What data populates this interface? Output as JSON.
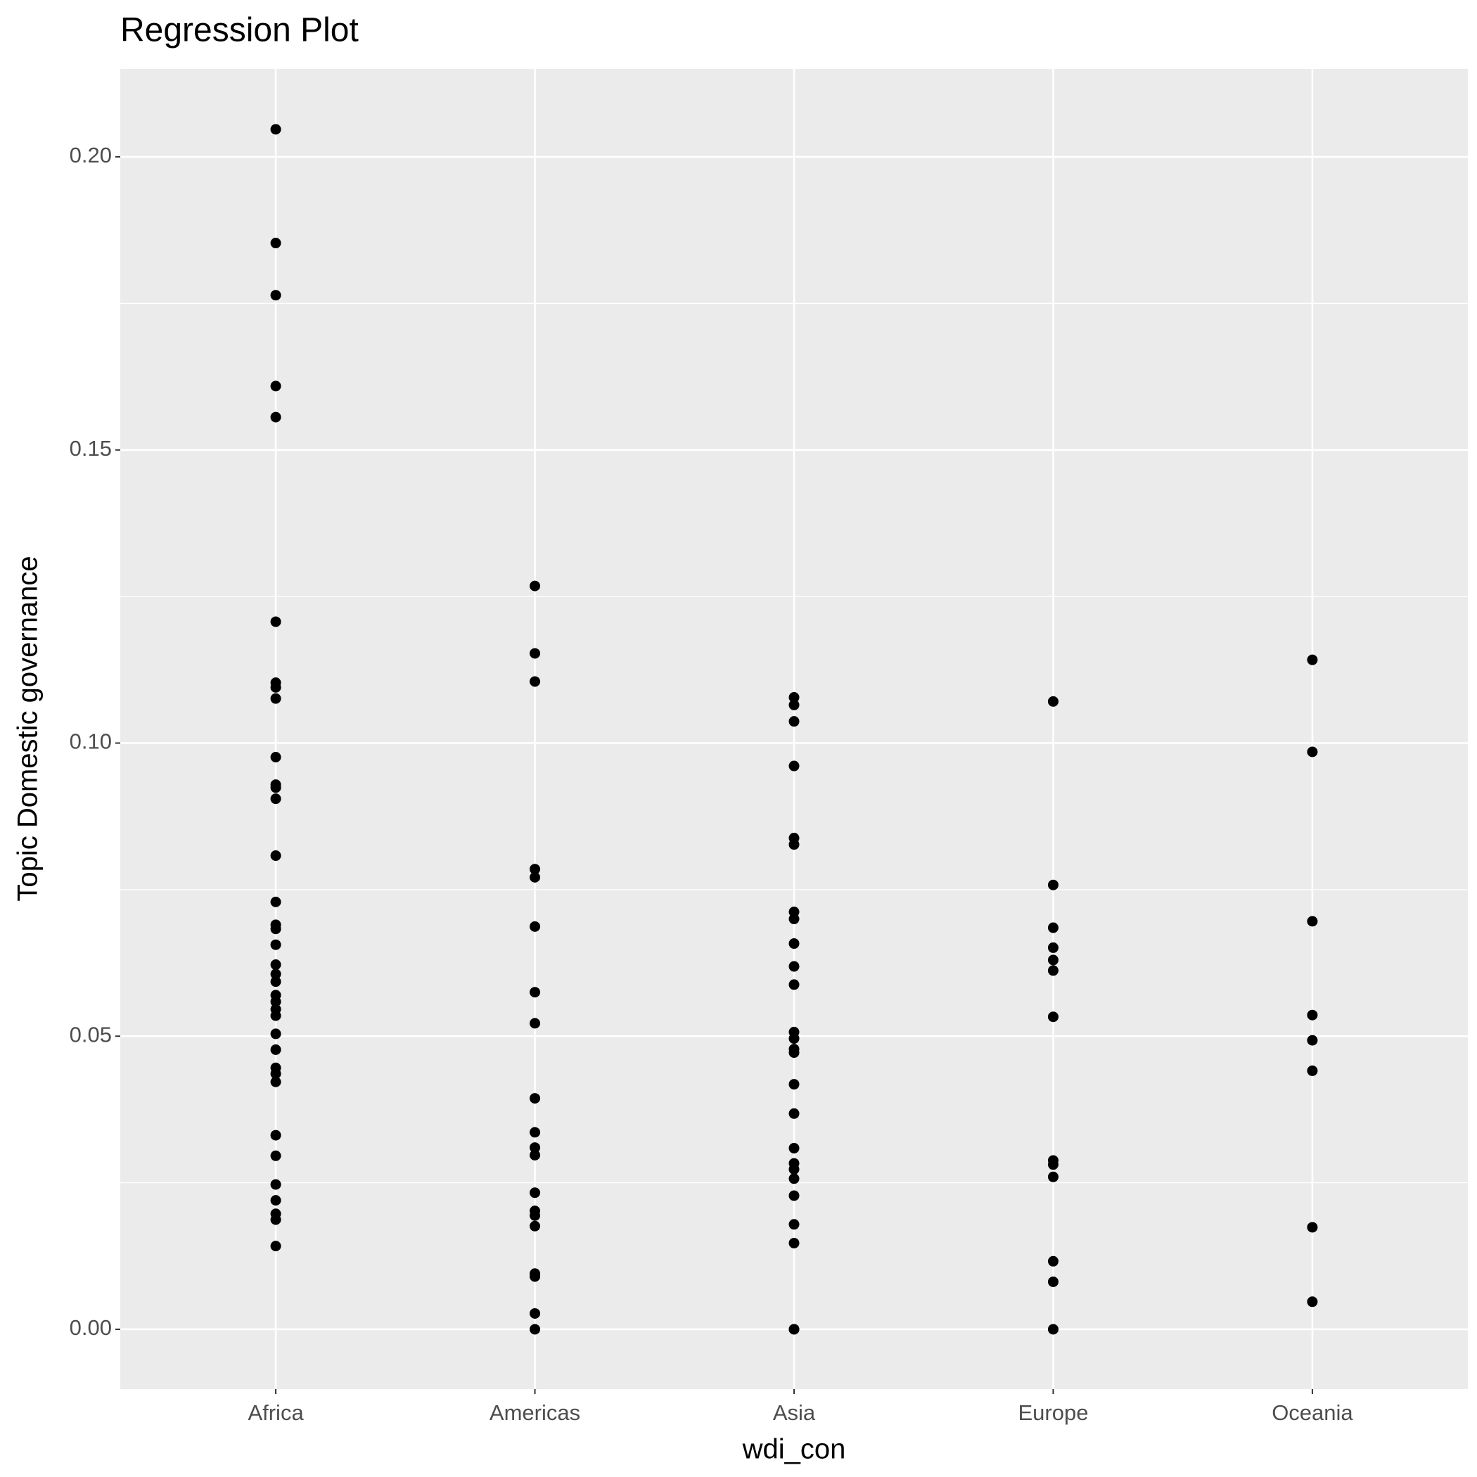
{
  "chart_data": {
    "type": "strip",
    "title": "Regression Plot",
    "x_label": "wdi_con",
    "y_label": "Topic Domestic governance",
    "categories": [
      "Africa",
      "Americas",
      "Asia",
      "Europe",
      "Oceania"
    ],
    "values": [
      [
        0.2047,
        0.1853,
        0.1764,
        0.1609,
        0.1556,
        0.1207,
        0.1103,
        0.1095,
        0.1076,
        0.0976,
        0.0929,
        0.0924,
        0.0905,
        0.0808,
        0.0729,
        0.069,
        0.0683,
        0.0656,
        0.0622,
        0.0606,
        0.0593,
        0.057,
        0.0559,
        0.0546,
        0.0535,
        0.0504,
        0.0477,
        0.0446,
        0.0436,
        0.0422,
        0.0331,
        0.0296,
        0.0247,
        0.022,
        0.0197,
        0.0187,
        0.0142
      ],
      [
        0.1268,
        0.1153,
        0.1105,
        0.0785,
        0.0771,
        0.0687,
        0.0575,
        0.0522,
        0.0394,
        0.0336,
        0.031,
        0.0297,
        0.0233,
        0.0202,
        0.0194,
        0.0176,
        0.0095,
        0.009,
        0.0027,
        0
      ],
      [
        0.1078,
        0.1065,
        0.1037,
        0.0961,
        0.0838,
        0.0827,
        0.0712,
        0.07,
        0.0658,
        0.0619,
        0.0588,
        0.0507,
        0.0496,
        0.0478,
        0.0472,
        0.0418,
        0.0368,
        0.0309,
        0.0283,
        0.0273,
        0.0257,
        0.0228,
        0.0179,
        0.0147,
        0,
        0
      ],
      [
        0.1071,
        0.0758,
        0.0685,
        0.0651,
        0.063,
        0.0612,
        0.0533,
        0.0288,
        0.0281,
        0.026,
        0.0116,
        0.0081,
        0
      ],
      [
        0.1142,
        0.0985,
        0.0696,
        0.0536,
        0.0493,
        0.0441,
        0.0174,
        0.0047
      ]
    ],
    "color": "#000000",
    "ylim": [
      -0.0102,
      0.215
    ],
    "yticks": [
      {
        "value": 0,
        "label": "0.00"
      },
      0.05,
      {
        "value": 0.1,
        "label": "0.10"
      },
      0.15,
      {
        "value": 0.2,
        "label": "0.20"
      }
    ],
    "grid": true
  }
}
